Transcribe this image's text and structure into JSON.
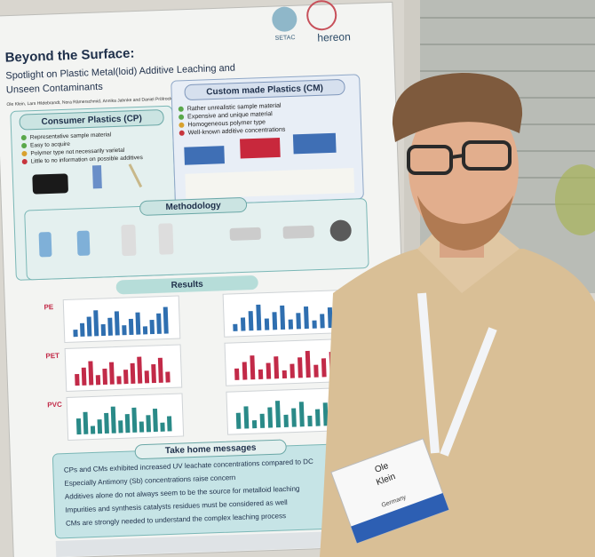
{
  "poster": {
    "logos": [
      "SETAC",
      "hereon"
    ],
    "title": "Beyond the Surface:",
    "subtitle_lines": [
      "Spotlight on Plastic Metal(loid) Additive Leaching and",
      "Unseen Contaminants"
    ],
    "authors": "Ole Klein, Lars Hildebrandt, Nora Rämerschmid, Annika Jahnke and Daniel Pröfrock",
    "consumer_plastics": {
      "heading": "Consumer Plastics (CP)",
      "bullets": [
        "Representative sample material",
        "Easy to acquire",
        "Polymer type not necessarily varietal",
        "Little to no information on possible additives"
      ]
    },
    "custom_plastics": {
      "heading": "Custom made Plastics (CM)",
      "bullets": [
        "Rather unrealistic sample material",
        "Expensive and unique material",
        "Homogeneous polymer type",
        "Well-known additive concentrations"
      ]
    },
    "methodology": {
      "heading": "Methodology"
    },
    "results": {
      "heading": "Results",
      "panels": [
        "PE",
        "PET",
        "PVC"
      ]
    },
    "take_home": {
      "heading": "Take home messages",
      "messages": [
        "CPs and CMs exhibited increased UV leachate concentrations compared to DC",
        "Especially Antimony (Sb) concentrations raise concern",
        "Additives alone do not always seem to be the source for metalloid leaching",
        "Impurities and synthesis catalysts residues must be considered as well",
        "CMs are strongly needed to understand the complex leaching process"
      ]
    }
  },
  "badge": {
    "first_name": "Ole",
    "last_name": "Klein",
    "country": "Germany"
  }
}
